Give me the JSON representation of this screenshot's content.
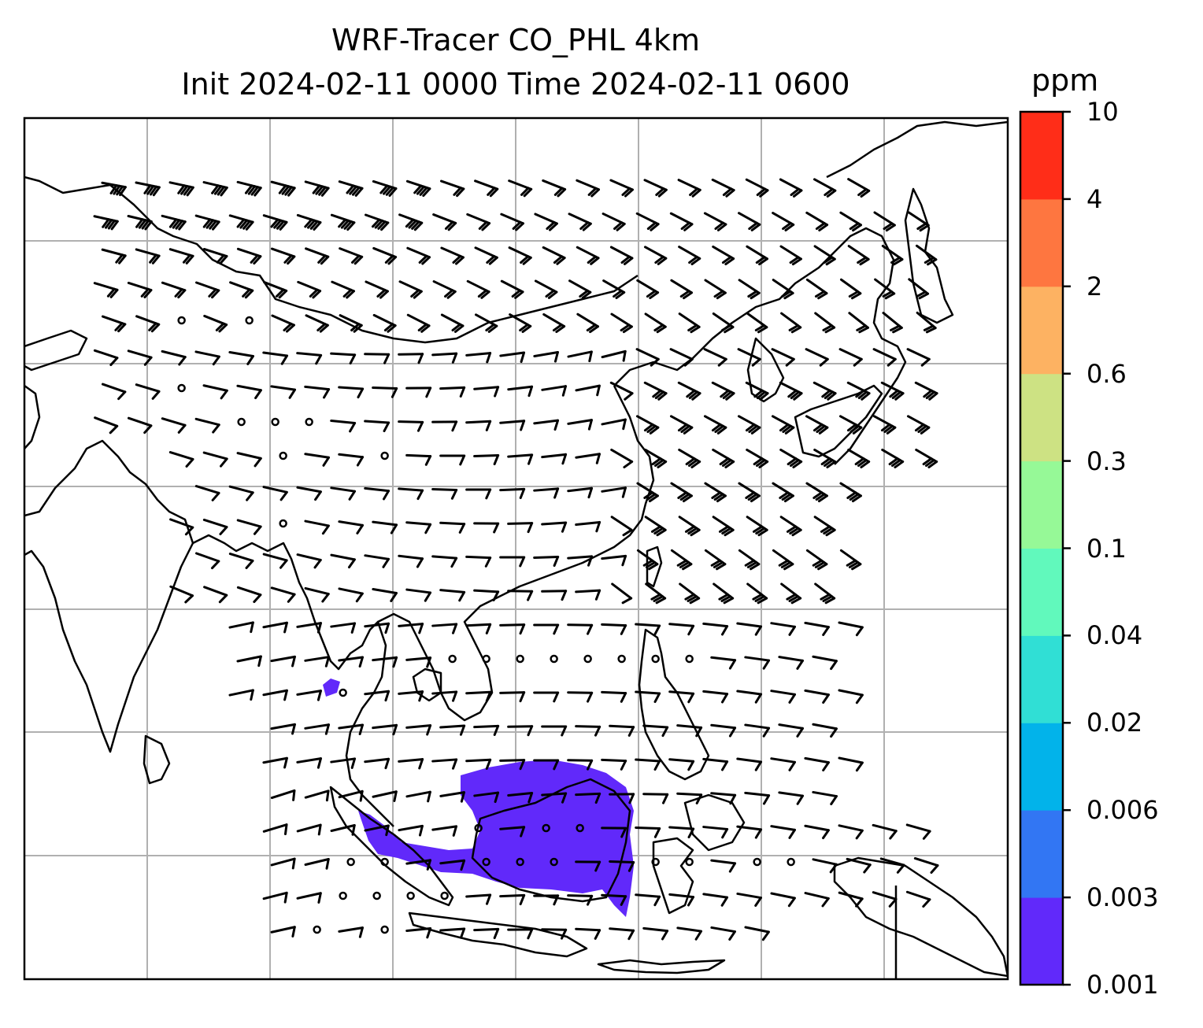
{
  "title": {
    "line1": "WRF-Tracer CO_PHL 4km",
    "line2": "Init 2024-02-11 0000 Time 2024-02-11 0600"
  },
  "colorbar": {
    "unit": "ppm",
    "levels": [
      "0.001",
      "0.003",
      "0.006",
      "0.02",
      "0.04",
      "0.1",
      "0.3",
      "0.6",
      "2",
      "4",
      "10"
    ],
    "colors": [
      "#6129fa",
      "#3276f3",
      "#02b3ea",
      "#30dfd5",
      "#61f9bc",
      "#96f997",
      "#cde283",
      "#fdb262",
      "#fe7640",
      "#ff2d18"
    ]
  },
  "map": {
    "gridlines": true,
    "coastline_color": "#000000",
    "grid_color": "#b0b0b0",
    "plume_color": "#6129fa",
    "wind_barbs": true
  }
}
